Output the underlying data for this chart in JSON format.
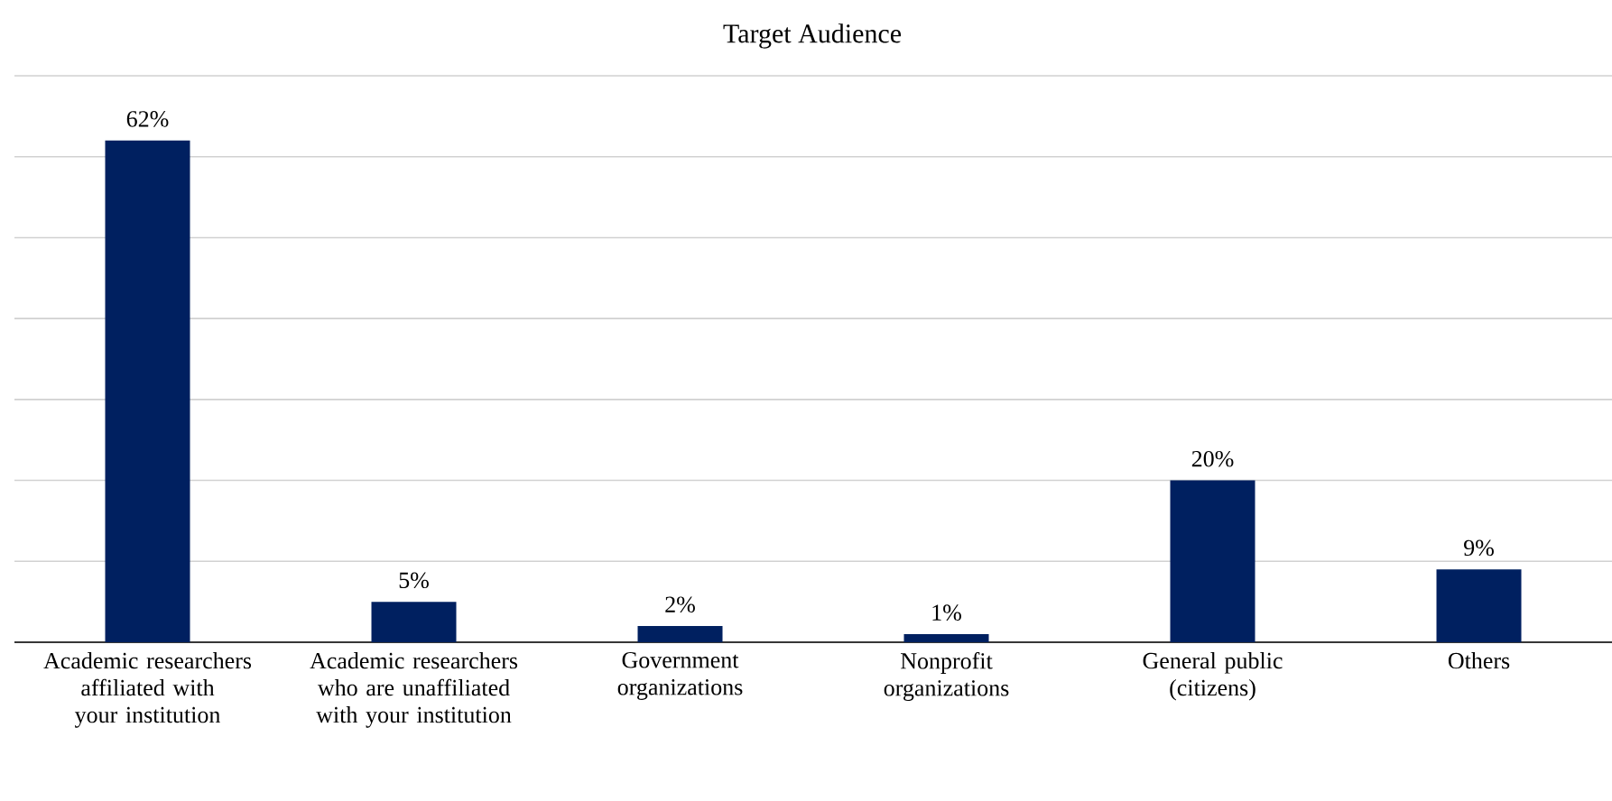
{
  "chart_data": {
    "type": "bar",
    "title": "Target Audience",
    "categories": [
      "Academic researchers affiliated with your institution",
      "Academic researchers who are unaffiliated with your institution",
      "Government organizations",
      "Nonprofit organizations",
      "General public (citizens)",
      "Others"
    ],
    "values": [
      62,
      5,
      2,
      1,
      20,
      9
    ],
    "value_labels": [
      "62%",
      "5%",
      "2%",
      "1%",
      "20%",
      "9%"
    ],
    "color": "#002060",
    "ylim": [
      0,
      70
    ],
    "yticks": [
      {
        "value": 0,
        "label": null
      },
      {
        "value": 10,
        "label": null
      },
      {
        "value": 20,
        "label": null
      },
      {
        "value": 30,
        "label": null
      },
      {
        "value": 40,
        "label": null
      },
      {
        "value": 50,
        "label": null
      },
      {
        "value": 60,
        "label": null
      },
      {
        "value": 70,
        "label": null
      }
    ],
    "grid": "y",
    "tick_labels": "x"
  }
}
